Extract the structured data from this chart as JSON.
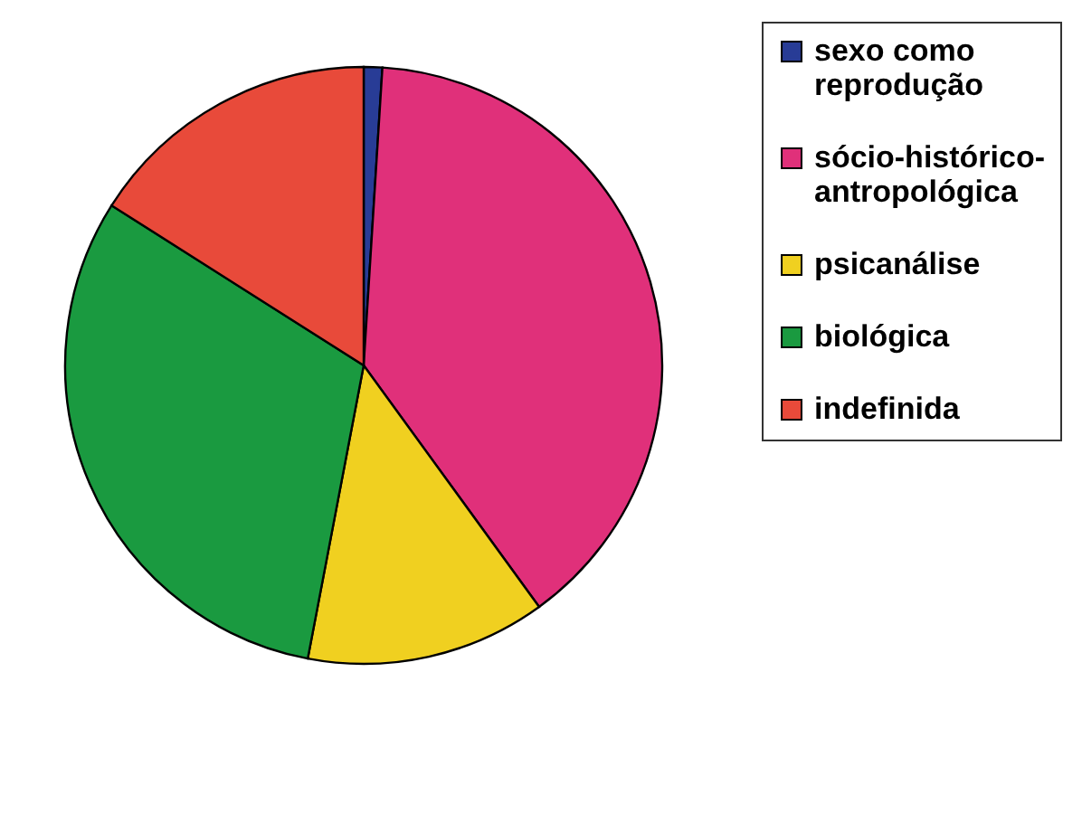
{
  "chart_data": {
    "type": "pie",
    "categories": [
      "sexo como reprodução",
      "sócio-histórico-antropológica",
      "psicanálise",
      "biológica",
      "indefinida"
    ],
    "values": [
      1,
      39,
      13,
      31,
      16
    ],
    "colors": [
      "#283c96",
      "#e0307a",
      "#f0d020",
      "#1a9a40",
      "#e84a3a"
    ],
    "legend": "right"
  }
}
